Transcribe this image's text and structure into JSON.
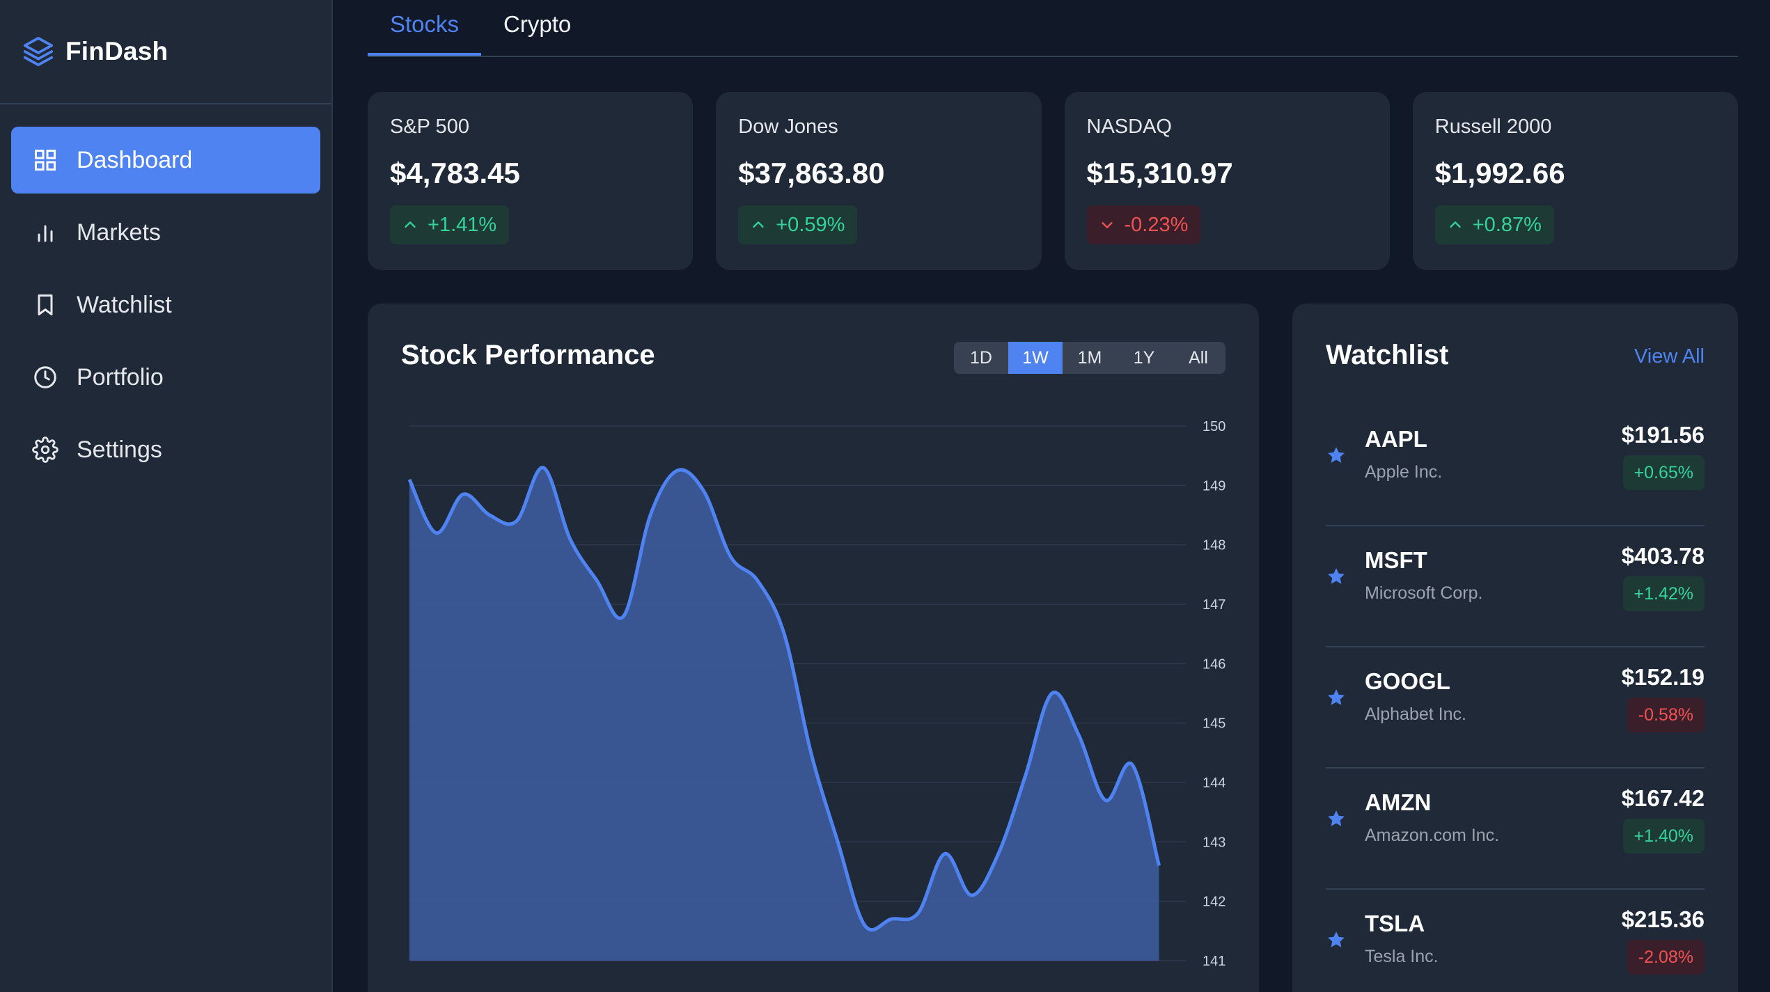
{
  "app": {
    "name": "FinDash"
  },
  "sidebar": {
    "items": [
      {
        "label": "Dashboard",
        "icon": "grid-icon",
        "active": true
      },
      {
        "label": "Markets",
        "icon": "bar-chart-icon",
        "active": false
      },
      {
        "label": "Watchlist",
        "icon": "bookmark-icon",
        "active": false
      },
      {
        "label": "Portfolio",
        "icon": "clock-icon",
        "active": false
      },
      {
        "label": "Settings",
        "icon": "gear-icon",
        "active": false
      }
    ]
  },
  "tabs": [
    {
      "label": "Stocks",
      "active": true
    },
    {
      "label": "Crypto",
      "active": false
    }
  ],
  "indices": [
    {
      "name": "S&P 500",
      "value": "$4,783.45",
      "change": "+1.41%",
      "direction": "up"
    },
    {
      "name": "Dow Jones",
      "value": "$37,863.80",
      "change": "+0.59%",
      "direction": "up"
    },
    {
      "name": "NASDAQ",
      "value": "$15,310.97",
      "change": "-0.23%",
      "direction": "down"
    },
    {
      "name": "Russell 2000",
      "value": "$1,992.66",
      "change": "+0.87%",
      "direction": "up"
    }
  ],
  "performance": {
    "title": "Stock Performance",
    "ranges": [
      "1D",
      "1W",
      "1M",
      "1Y",
      "All"
    ],
    "active_range": "1W"
  },
  "chart_data": {
    "type": "area",
    "title": "Stock Performance",
    "x": [
      0,
      1,
      2,
      3,
      4,
      5,
      6,
      7,
      8,
      9,
      10,
      11,
      12,
      13,
      14,
      15,
      16,
      17,
      18,
      19,
      20,
      21,
      22,
      23,
      24,
      25,
      26,
      27,
      28,
      29
    ],
    "values": [
      149.1,
      148.2,
      148.85,
      148.5,
      148.4,
      149.3,
      148.1,
      147.4,
      146.8,
      148.5,
      149.25,
      148.9,
      147.8,
      147.4,
      146.5,
      144.5,
      143.0,
      141.6,
      141.7,
      141.8,
      142.8,
      142.1,
      142.8,
      144.1,
      145.5,
      144.8,
      143.7,
      144.3,
      142.6,
      null
    ],
    "ylim": [
      141,
      150
    ],
    "yticks": [
      150,
      149,
      148,
      147,
      146,
      145,
      144,
      143,
      142,
      141
    ],
    "color": "#4f83f1",
    "fill": "#3b5998",
    "grid": true
  },
  "watchlist": {
    "title": "Watchlist",
    "view_all": "View All",
    "items": [
      {
        "symbol": "AAPL",
        "company": "Apple Inc.",
        "price": "$191.56",
        "change": "+0.65%",
        "direction": "up"
      },
      {
        "symbol": "MSFT",
        "company": "Microsoft Corp.",
        "price": "$403.78",
        "change": "+1.42%",
        "direction": "up"
      },
      {
        "symbol": "GOOGL",
        "company": "Alphabet Inc.",
        "price": "$152.19",
        "change": "-0.58%",
        "direction": "down"
      },
      {
        "symbol": "AMZN",
        "company": "Amazon.com Inc.",
        "price": "$167.42",
        "change": "+1.40%",
        "direction": "up"
      },
      {
        "symbol": "TSLA",
        "company": "Tesla Inc.",
        "price": "$215.36",
        "change": "-2.08%",
        "direction": "down"
      }
    ]
  },
  "colors": {
    "accent": "#4f83f1",
    "up": "#34d399",
    "down": "#f05252",
    "panel": "#1f2937",
    "background": "#111827"
  }
}
